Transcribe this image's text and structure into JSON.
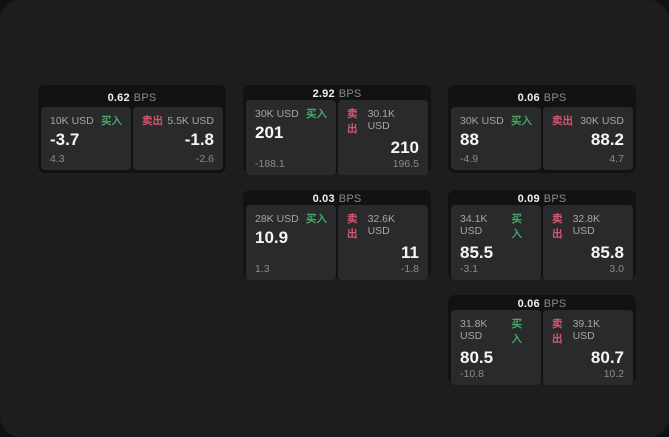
{
  "labels": {
    "bps": "BPS",
    "buy": "买入",
    "sell": "卖出"
  },
  "colors": {
    "surface_bg": "#1d1d1e",
    "card_bg": "#121214",
    "panel_bg": "#2a2a2c",
    "buy_green": "#44a866",
    "sell_red": "#d8566e",
    "value_white": "#f5f5f5",
    "muted_gray": "#8b8b8b"
  },
  "cards": [
    {
      "bps": "0.62",
      "buy": {
        "amount": "10K USD",
        "value": "-3.7",
        "delta": "4.3"
      },
      "sell": {
        "amount": "5.5K USD",
        "value": "-1.8",
        "delta": "-2.6"
      }
    },
    {
      "bps": "2.92",
      "buy": {
        "amount": "30K USD",
        "value": "201",
        "delta": "-188.1"
      },
      "sell": {
        "amount": "30.1K USD",
        "value": "210",
        "delta": "196.5"
      }
    },
    {
      "bps": "0.06",
      "buy": {
        "amount": "30K USD",
        "value": "88",
        "delta": "-4.9"
      },
      "sell": {
        "amount": "30K USD",
        "value": "88.2",
        "delta": "4.7"
      }
    },
    {
      "bps": "0.03",
      "buy": {
        "amount": "28K USD",
        "value": "10.9",
        "delta": "1.3"
      },
      "sell": {
        "amount": "32.6K USD",
        "value": "11",
        "delta": "-1.8"
      }
    },
    {
      "bps": "0.09",
      "buy": {
        "amount": "34.1K USD",
        "value": "85.5",
        "delta": "-3.1"
      },
      "sell": {
        "amount": "32.8K USD",
        "value": "85.8",
        "delta": "3.0"
      }
    },
    {
      "bps": "0.06",
      "buy": {
        "amount": "31.8K USD",
        "value": "80.5",
        "delta": "-10.8"
      },
      "sell": {
        "amount": "39.1K USD",
        "value": "80.7",
        "delta": "10.2"
      }
    }
  ]
}
